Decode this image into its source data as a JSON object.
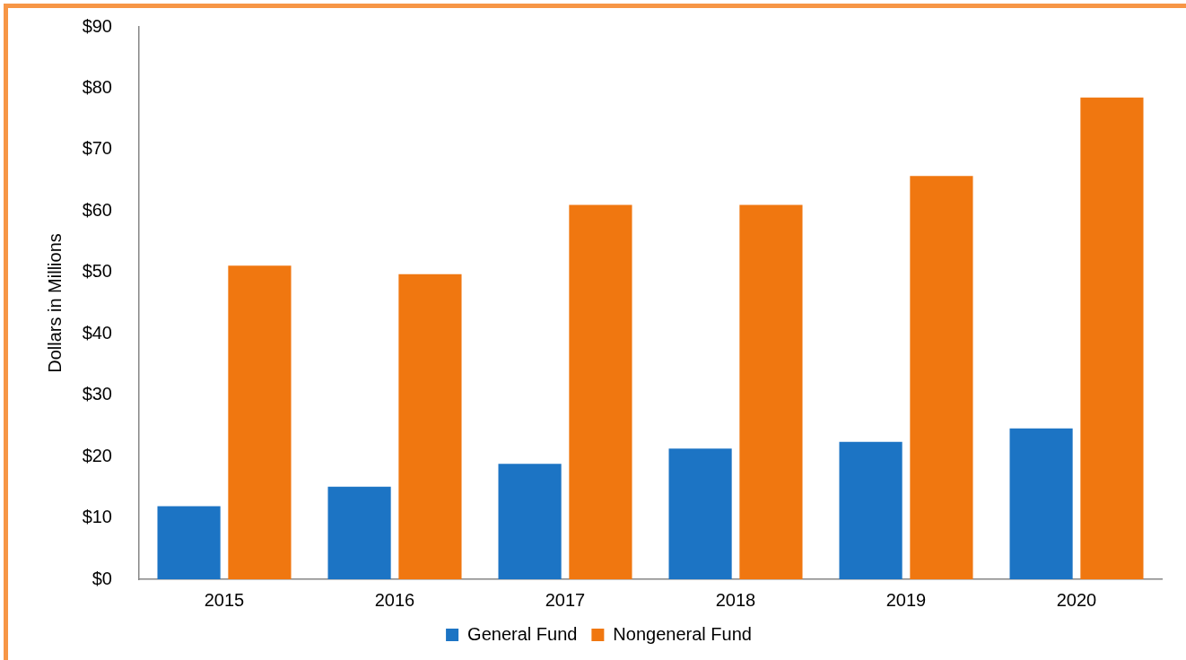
{
  "chart_data": {
    "type": "bar",
    "ylabel": "Dollars in Millions",
    "categories": [
      "2015",
      "2016",
      "2017",
      "2018",
      "2019",
      "2020"
    ],
    "series": [
      {
        "name": "General Fund",
        "color": "#1c74c4",
        "values": [
          11.9,
          15.1,
          18.8,
          21.3,
          22.4,
          24.6
        ]
      },
      {
        "name": "Nongeneral Fund",
        "color": "#f07710",
        "values": [
          51.1,
          49.7,
          61.0,
          61.0,
          65.7,
          78.5
        ]
      }
    ],
    "ylim": [
      0,
      90
    ],
    "yticks": [
      {
        "value": 0,
        "label": "$0"
      },
      {
        "value": 10,
        "label": "$10"
      },
      {
        "value": 20,
        "label": "$20"
      },
      {
        "value": 30,
        "label": "$30"
      },
      {
        "value": 40,
        "label": "$40"
      },
      {
        "value": 50,
        "label": "$50"
      },
      {
        "value": 60,
        "label": "$60"
      },
      {
        "value": 70,
        "label": "$70"
      },
      {
        "value": 80,
        "label": "$80"
      },
      {
        "value": 90,
        "label": "$90"
      }
    ],
    "grid": false,
    "legend": "bottom"
  }
}
